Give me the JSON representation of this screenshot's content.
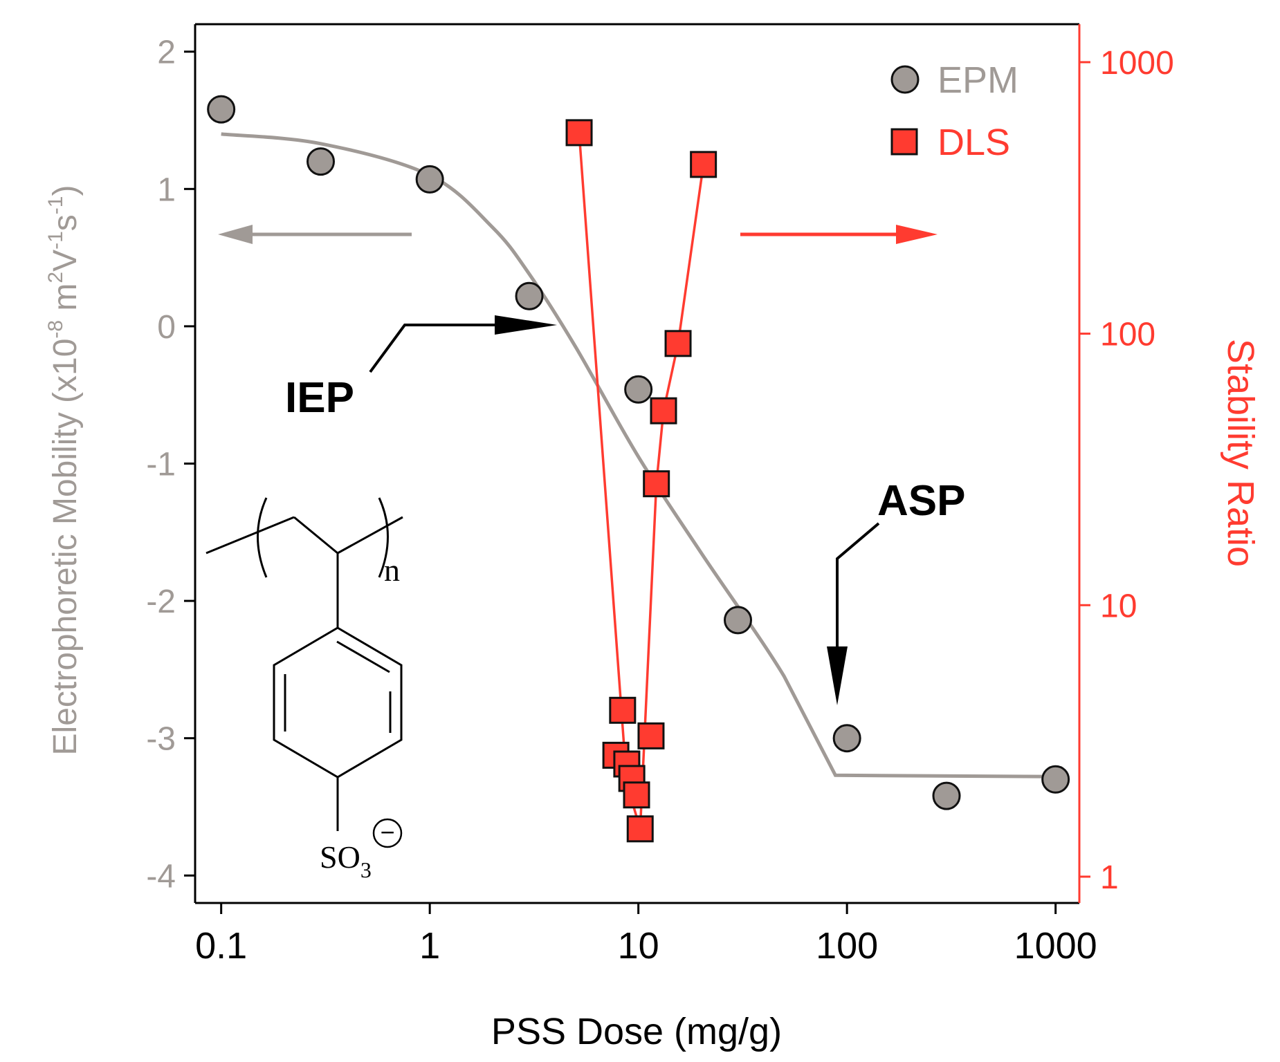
{
  "chart_data": {
    "type": "scatter",
    "x_axis": {
      "label": "PSS Dose (mg/g)",
      "scale": "log",
      "range": [
        0.075,
        1300
      ],
      "ticks": [
        0.1,
        1,
        10,
        100,
        1000
      ],
      "tick_labels": [
        "0.1",
        "1",
        "10",
        "100",
        "1000"
      ]
    },
    "y_left": {
      "label_main": "Electrophoretic Mobility (x10",
      "label_exp1": "-8",
      "label_unit1": " m",
      "label_exp2": "2",
      "label_unit2": "V",
      "label_exp3": "-1",
      "label_unit3": "s",
      "label_exp4": "-1",
      "label_close": ")",
      "range": [
        -4.2,
        2.2
      ],
      "ticks": [
        2,
        1,
        0,
        -1,
        -2,
        -3,
        -4
      ],
      "tick_labels": [
        "2",
        "1",
        "0",
        "-1",
        "-2",
        "-3",
        "-4"
      ],
      "color": "#a09a96"
    },
    "y_right": {
      "label": "Stability Ratio",
      "scale": "log",
      "range": [
        0.8,
        1380
      ],
      "ticks": [
        1000,
        100,
        10,
        1
      ],
      "tick_labels": [
        "1000",
        "100",
        "10",
        "1"
      ],
      "color": "#ff3b30"
    },
    "series": [
      {
        "name": "EPM",
        "marker": "circle",
        "color": "#a09a96",
        "axis": "left",
        "points": [
          [
            0.1,
            1.58
          ],
          [
            0.3,
            1.2
          ],
          [
            1,
            1.07
          ],
          [
            3,
            0.22
          ],
          [
            10,
            -0.46
          ],
          [
            30,
            -2.14
          ],
          [
            100,
            -3.0
          ],
          [
            300,
            -3.42
          ],
          [
            1000,
            -3.3
          ]
        ]
      },
      {
        "name": "DLS",
        "marker": "square",
        "color": "#ff3b30",
        "axis": "right",
        "points": [
          [
            5.2,
            550
          ],
          [
            7.8,
            2.8
          ],
          [
            8.4,
            4.1
          ],
          [
            8.8,
            2.6
          ],
          [
            9.3,
            2.3
          ],
          [
            9.8,
            2.0
          ],
          [
            10.2,
            1.5
          ],
          [
            11.5,
            3.3
          ],
          [
            12.2,
            28
          ],
          [
            13.2,
            52
          ],
          [
            15.5,
            92
          ],
          [
            20.5,
            420
          ]
        ]
      }
    ],
    "epm_fit_curve": [
      [
        0.1,
        1.4
      ],
      [
        0.3,
        1.33
      ],
      [
        1,
        1.1
      ],
      [
        2,
        0.72
      ],
      [
        3,
        0.38
      ],
      [
        5,
        -0.15
      ],
      [
        10,
        -0.95
      ],
      [
        20,
        -1.65
      ],
      [
        50,
        -2.55
      ],
      [
        88,
        -3.27
      ],
      [
        1000,
        -3.28
      ]
    ],
    "dls_line": [
      [
        5.2,
        550
      ],
      [
        8.8,
        2.2
      ],
      [
        10.2,
        1.5
      ],
      [
        12.2,
        28
      ],
      [
        13.2,
        52
      ],
      [
        15.5,
        92
      ],
      [
        20.5,
        420
      ]
    ],
    "legend": {
      "position": "top-right",
      "entries": [
        "EPM",
        "DLS"
      ]
    },
    "annotations": {
      "iep": "IEP",
      "asp": "ASP"
    },
    "structure": {
      "subscript_n": "n",
      "sulfonate_so": "SO",
      "sulfonate_sub": "3",
      "sulfonate_charge": "−"
    }
  }
}
